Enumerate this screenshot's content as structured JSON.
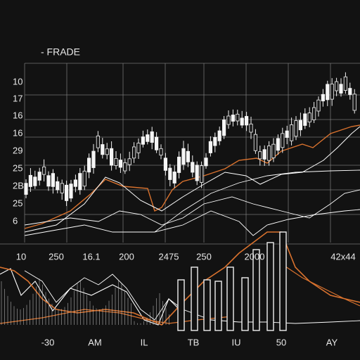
{
  "header": {
    "title": "- FRADE"
  },
  "left_labels": [
    "10",
    "17",
    "16",
    "16",
    "29",
    "25",
    "2B",
    "25",
    "6"
  ],
  "middle_labels": [
    "10",
    "250",
    "16.1",
    "200",
    "2475",
    "250",
    "2000",
    "42x44"
  ],
  "bottom_labels": [
    "-30",
    "AM",
    "IL",
    "TB",
    "IU",
    "50",
    "AY"
  ]
}
